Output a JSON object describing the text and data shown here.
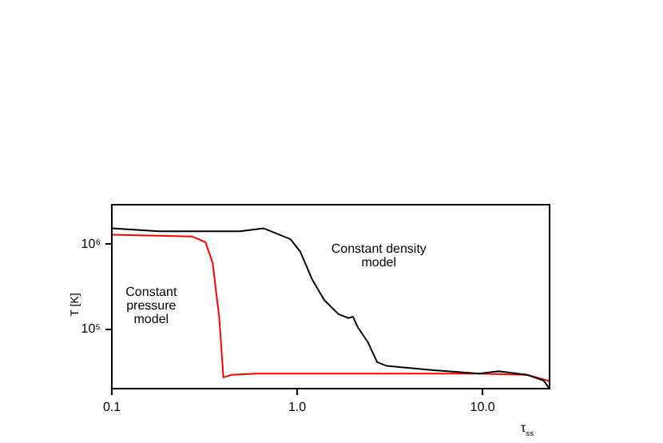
{
  "chart_data": {
    "type": "line",
    "xlabel": "τ$_{ss}$",
    "ylabel": "T [K]",
    "log": "xy",
    "grid": false,
    "legend": false,
    "marker": "none",
    "line_style": "solid",
    "xlim": [
      0.1,
      23
    ],
    "xticks": [
      {
        "value": 0.1,
        "label": "0.1"
      },
      {
        "value": 1,
        "label": "1.0"
      },
      {
        "value": 10,
        "label": "10.0"
      }
    ],
    "ylim": [
      20000,
      2900000
    ],
    "yticks": [
      {
        "value": 100000,
        "label": "10⁵"
      },
      {
        "value": 1000000,
        "label": "10⁶"
      }
    ],
    "series": [
      {
        "color": "#000000",
        "x": [
          0.1,
          0.18,
          0.49,
          0.66,
          0.8,
          0.92,
          1.04,
          1.2,
          1.4,
          1.67,
          1.89,
          2.0,
          2.13,
          2.4,
          2.7,
          3.04,
          5.3,
          9.6,
          12.2,
          17.4,
          21.3,
          23
        ],
        "values": [
          1530000,
          1410000,
          1410000,
          1530000,
          1290000,
          1140000,
          810000,
          390000,
          220000,
          150000,
          135000,
          140000,
          104000,
          71000,
          41000,
          37000,
          33000,
          30000,
          32000,
          29000,
          25000,
          20000
        ]
      },
      {
        "color": "#ff0000",
        "x": [
          0.1,
          0.27,
          0.32,
          0.35,
          0.38,
          0.4,
          0.44,
          0.6,
          9.6,
          17.4,
          23
        ],
        "values": [
          1290000,
          1230000,
          1050000,
          600000,
          135000,
          27000,
          29000,
          30000,
          30000,
          29000,
          24500
        ]
      }
    ],
    "annotations": [
      "Constant density\nmodel",
      "Constant\npressure\nmodel"
    ]
  }
}
